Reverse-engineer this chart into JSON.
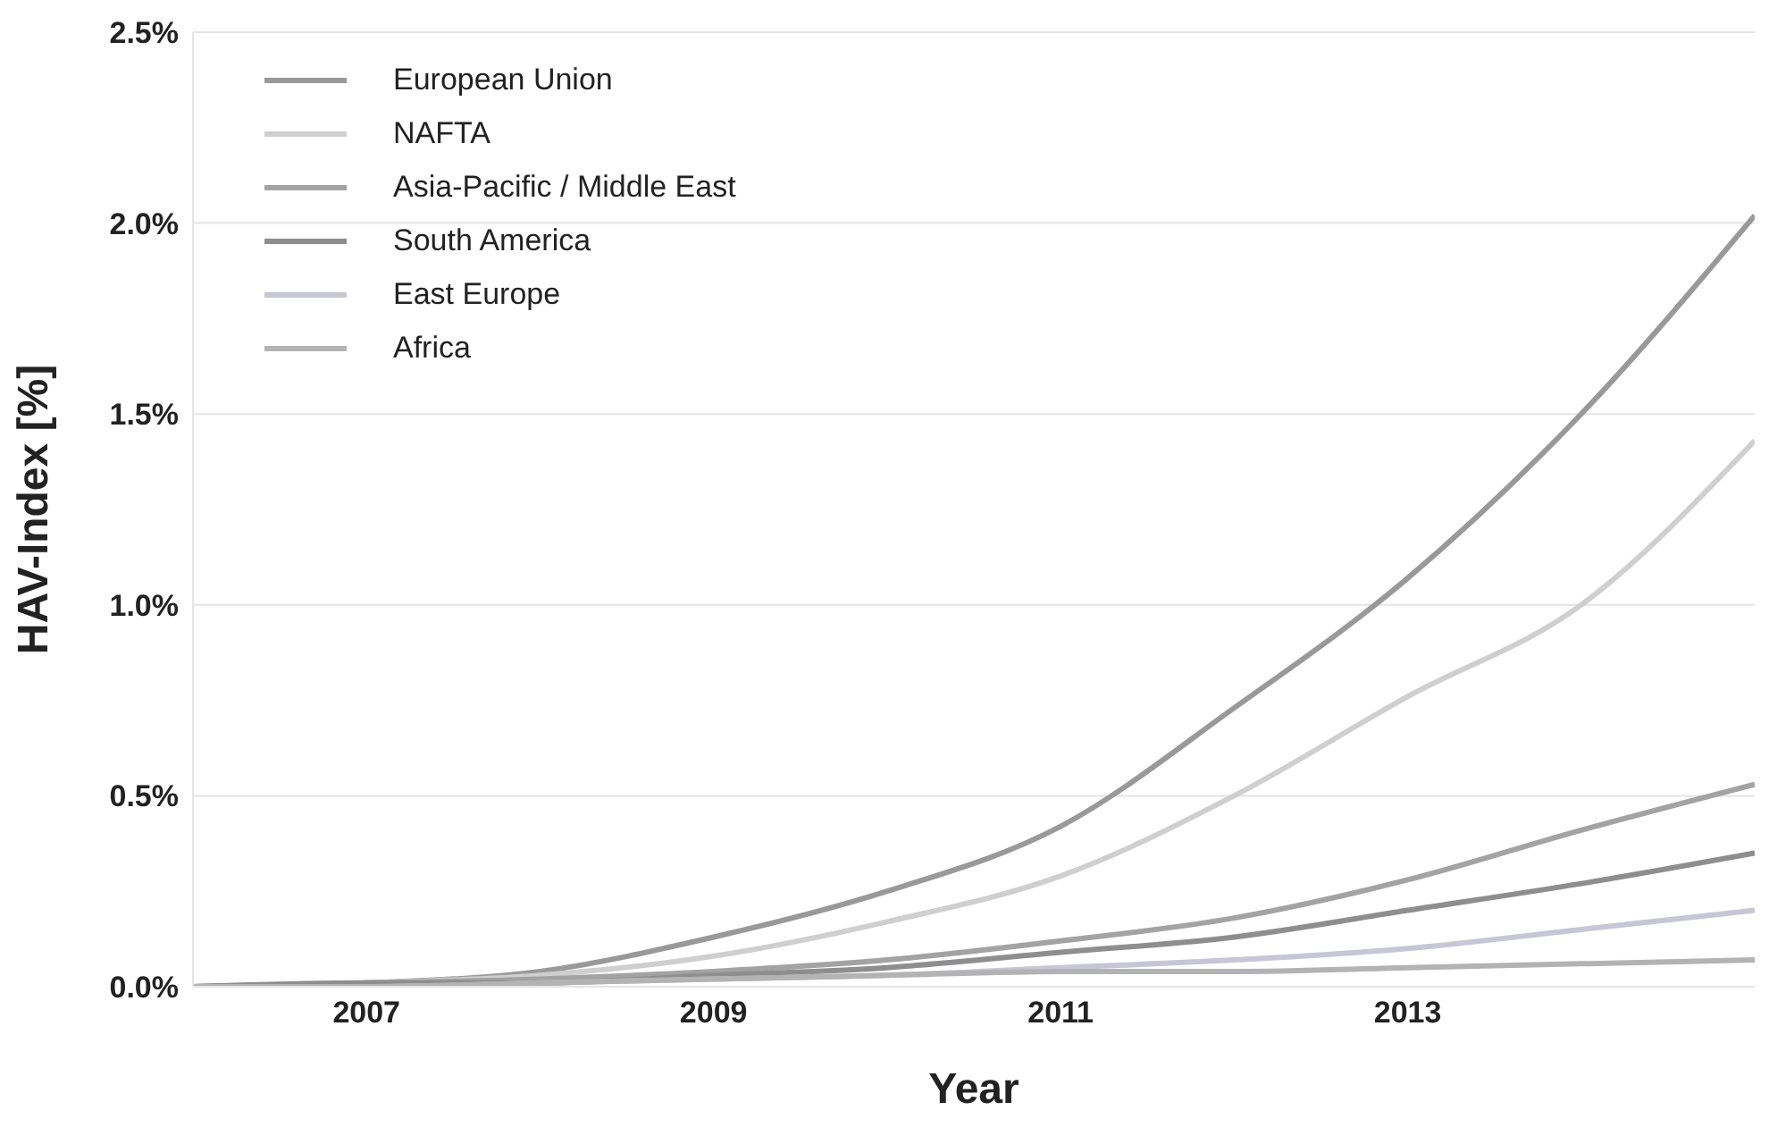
{
  "chart_data": {
    "type": "line",
    "xlabel": "Year",
    "ylabel": "HAV-Index [%]",
    "x": [
      2006,
      2007,
      2008,
      2009,
      2010,
      2011,
      2012,
      2013,
      2014,
      2015
    ],
    "series": [
      {
        "name": "European Union",
        "color": "#999999",
        "values": [
          0,
          0.01,
          0.04,
          0.13,
          0.25,
          0.42,
          0.73,
          1.07,
          1.5,
          2.02
        ]
      },
      {
        "name": "NAFTA",
        "color": "#cfcfcf",
        "values": [
          0,
          0.01,
          0.03,
          0.08,
          0.17,
          0.29,
          0.5,
          0.76,
          1.0,
          1.43
        ]
      },
      {
        "name": "Asia-Pacific / Middle East",
        "color": "#a3a3a3",
        "values": [
          0,
          0.01,
          0.02,
          0.04,
          0.07,
          0.12,
          0.18,
          0.28,
          0.41,
          0.53
        ]
      },
      {
        "name": "South America",
        "color": "#8e8e8e",
        "values": [
          0,
          0.01,
          0.01,
          0.03,
          0.05,
          0.09,
          0.13,
          0.2,
          0.27,
          0.35
        ]
      },
      {
        "name": "East Europe",
        "color": "#c6c6d6",
        "values": [
          0,
          0,
          0.01,
          0.02,
          0.03,
          0.05,
          0.07,
          0.1,
          0.15,
          0.2
        ]
      },
      {
        "name": "Africa",
        "color": "#b3b3b3",
        "values": [
          0,
          0,
          0.01,
          0.02,
          0.03,
          0.04,
          0.04,
          0.05,
          0.06,
          0.07
        ]
      }
    ],
    "xlim": [
      2006,
      2015
    ],
    "xticks": [
      2007,
      2009,
      2011,
      2013
    ],
    "ylim": [
      0,
      2.5
    ],
    "yticks": [
      {
        "value": 0,
        "label": "0.0%"
      },
      {
        "value": 0.5,
        "label": "0.5%"
      },
      {
        "value": 1,
        "label": "1.0%"
      },
      {
        "value": 1.5,
        "label": "1.5%"
      },
      {
        "value": 2,
        "label": "2.0%"
      },
      {
        "value": 2.5,
        "label": "2.5%"
      }
    ],
    "grid": "y",
    "legend": "top left",
    "marker": "none",
    "line_style": "solid"
  }
}
